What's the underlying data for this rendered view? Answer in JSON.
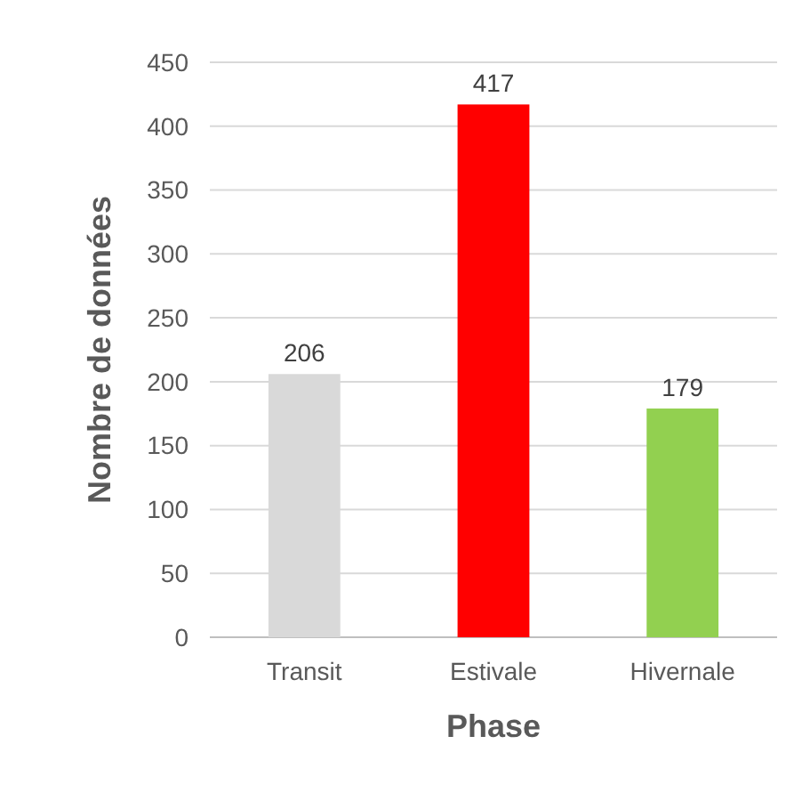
{
  "chart_data": {
    "type": "bar",
    "xlabel": "Phase",
    "ylabel": "Nombre de données",
    "categories": [
      "Transit",
      "Estivale",
      "Hivernale"
    ],
    "values": [
      206,
      417,
      179
    ],
    "colors": [
      "#d9d9d9",
      "#ff0000",
      "#92d050"
    ],
    "ylim": [
      0,
      450
    ],
    "yticks": [
      0,
      50,
      100,
      150,
      200,
      250,
      300,
      350,
      400,
      450
    ],
    "grid": "y",
    "data_labels": true
  }
}
